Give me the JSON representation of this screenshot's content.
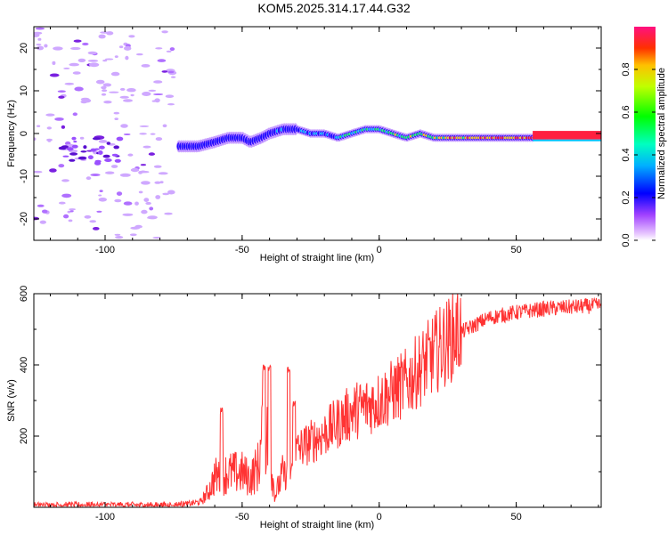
{
  "title": "KOM5.2025.314.17.44.G32",
  "chart_data": [
    {
      "type": "heatmap",
      "name": "spectrogram",
      "title": "KOM5.2025.314.17.44.G32",
      "xlabel": "Height of straight line (km)",
      "ylabel": "Frequency (Hz)",
      "xlim": [
        -126,
        81
      ],
      "ylim": [
        -25,
        25
      ],
      "xticks": [
        -100,
        -50,
        0,
        50
      ],
      "yticks": [
        -20,
        -10,
        0,
        10,
        20
      ],
      "colorbar": {
        "label": "Normalized spectral amplitude",
        "range": [
          0,
          1
        ],
        "ticks": [
          "0.0",
          "0.2",
          "0.4",
          "0.6",
          "0.8"
        ],
        "tick_values": [
          0.0,
          0.2,
          0.4,
          0.6,
          0.8
        ]
      },
      "ridge": [
        [
          -73,
          -3
        ],
        [
          -66,
          -3
        ],
        [
          -60,
          -2
        ],
        [
          -55,
          -1
        ],
        [
          -50,
          -1
        ],
        [
          -47,
          -2
        ],
        [
          -43,
          -1
        ],
        [
          -40,
          0
        ],
        [
          -35,
          1
        ],
        [
          -30,
          1
        ],
        [
          -25,
          0
        ],
        [
          -20,
          0
        ],
        [
          -15,
          -1
        ],
        [
          -10,
          0
        ],
        [
          -5,
          1
        ],
        [
          0,
          1
        ],
        [
          5,
          0
        ],
        [
          10,
          -1
        ],
        [
          15,
          0
        ],
        [
          20,
          -1
        ],
        [
          30,
          -1
        ],
        [
          40,
          -1
        ],
        [
          56,
          -1
        ],
        [
          81,
          0
        ]
      ],
      "noise_region": {
        "x": [
          -126,
          -75
        ],
        "y": [
          -25,
          25
        ]
      }
    },
    {
      "type": "line",
      "name": "snr",
      "xlabel": "Height of straight line (km)",
      "ylabel": "SNR (v/v)",
      "xlim": [
        -126,
        81
      ],
      "ylim": [
        0,
        600
      ],
      "xticks": [
        -100,
        -50,
        0,
        50
      ],
      "yticks": [
        200,
        400,
        600
      ],
      "series_color": "#ff3333",
      "envelope": [
        [
          -126,
          5
        ],
        [
          -100,
          6
        ],
        [
          -80,
          5
        ],
        [
          -70,
          8
        ],
        [
          -65,
          15
        ],
        [
          -62,
          45
        ],
        [
          -60,
          80
        ],
        [
          -55,
          90
        ],
        [
          -50,
          90
        ],
        [
          -47,
          75
        ],
        [
          -44,
          110
        ],
        [
          -42,
          220
        ],
        [
          -40,
          140
        ],
        [
          -38,
          30
        ],
        [
          -35,
          90
        ],
        [
          -33,
          80
        ],
        [
          -30,
          155
        ],
        [
          -20,
          200
        ],
        [
          -10,
          260
        ],
        [
          0,
          290
        ],
        [
          10,
          340
        ],
        [
          20,
          420
        ],
        [
          30,
          490
        ],
        [
          40,
          530
        ],
        [
          50,
          545
        ],
        [
          60,
          555
        ],
        [
          70,
          560
        ],
        [
          81,
          565
        ]
      ],
      "spikes": [
        {
          "x": -57.5,
          "y": 280
        },
        {
          "x": -42,
          "y": 400
        },
        {
          "x": -40,
          "y": 400
        },
        {
          "x": -33,
          "y": 400
        },
        {
          "x": -31,
          "y": 300
        }
      ]
    }
  ]
}
